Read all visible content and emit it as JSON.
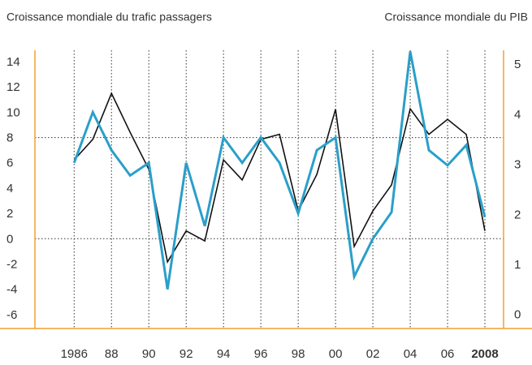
{
  "chart_data": {
    "type": "line",
    "title": "Croissance mondiale du trafic passagers",
    "y2_title": "Croissance mondiale du PIB",
    "x": [
      1986,
      1987,
      1988,
      1989,
      1990,
      1991,
      1992,
      1993,
      1994,
      1995,
      1996,
      1997,
      1998,
      1999,
      2000,
      2001,
      2002,
      2003,
      2004,
      2005,
      2006,
      2007,
      2008
    ],
    "series": [
      {
        "name": "Croissance mondiale du PIB",
        "color": "#111111",
        "axis": "y2",
        "values": [
          3.09,
          3.5,
          4.42,
          3.64,
          2.9,
          1.05,
          1.67,
          1.47,
          3.09,
          2.69,
          3.5,
          3.6,
          2.07,
          2.8,
          4.1,
          1.36,
          2.07,
          2.59,
          4.11,
          3.6,
          3.9,
          3.6,
          1.67
        ]
      },
      {
        "name": "Croissance mondiale du trafic passagers",
        "color": "#2a9fc9",
        "axis": "y",
        "values": [
          6,
          10,
          7,
          5,
          6,
          -4,
          6,
          1,
          8,
          6,
          8,
          6,
          2,
          7,
          8,
          -3,
          0,
          2.1,
          14.8,
          7,
          5.8,
          7.4,
          1.7
        ]
      }
    ],
    "xlim": [
      1983.9,
      2009
    ],
    "xticks": [
      1986,
      {
        "value": 1988,
        "label": "88"
      },
      {
        "value": 1990,
        "label": "90"
      },
      {
        "value": 1992,
        "label": "92"
      },
      {
        "value": 1994,
        "label": "94"
      },
      {
        "value": 1996,
        "label": "96"
      },
      {
        "value": 1998,
        "label": "98"
      },
      {
        "value": 2000,
        "label": "00"
      },
      {
        "value": 2002,
        "label": "02"
      },
      {
        "value": 2004,
        "label": "04"
      },
      {
        "value": 2006,
        "label": "06"
      },
      2008
    ],
    "ylim": [
      -7.1,
      14.9
    ],
    "yticks": [
      -6,
      -4,
      -2,
      0,
      2,
      4,
      6,
      8,
      10,
      12,
      14
    ],
    "y2lim": [
      -0.28,
      5.28
    ],
    "y2ticks": [
      0,
      1,
      2,
      3,
      4,
      5
    ],
    "grid_y": [
      0,
      8
    ],
    "grid_x": true,
    "bold_last_xtick": true,
    "axis_color": "#f0a030"
  }
}
